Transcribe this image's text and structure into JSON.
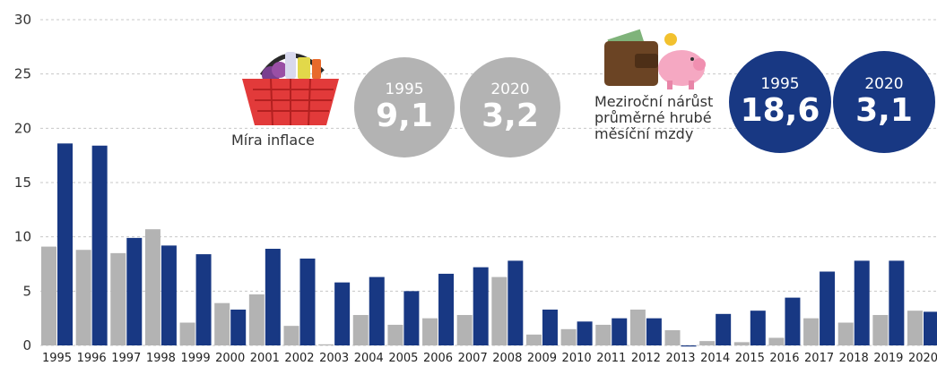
{
  "colors": {
    "inflation": "#b3b3b3",
    "wage_growth": "#183883",
    "circle_grey": "#b3b3b3",
    "circle_blue": "#183883"
  },
  "legend": {
    "inflation": {
      "caption": "Míra inflace",
      "icon": "shopping-basket-icon",
      "start": {
        "year": "1995",
        "value": "9,1"
      },
      "end": {
        "year": "2020",
        "value": "3,2"
      }
    },
    "wages": {
      "caption_lines": [
        "Meziroční nárůst",
        "průměrné hrubé",
        "měsíční mzdy"
      ],
      "icon": "wallet-piggy-bank-icon",
      "start": {
        "year": "1995",
        "value": "18,6"
      },
      "end": {
        "year": "2020",
        "value": "3,1"
      }
    }
  },
  "chart_data": {
    "type": "bar",
    "categories": [
      "1995",
      "1996",
      "1997",
      "1998",
      "1999",
      "2000",
      "2001",
      "2002",
      "2003",
      "2004",
      "2005",
      "2006",
      "2007",
      "2008",
      "2009",
      "2010",
      "2011",
      "2012",
      "2013",
      "2014",
      "2015",
      "2016",
      "2017",
      "2018",
      "2019",
      "2020"
    ],
    "series": [
      {
        "name": "Míra inflace",
        "values": [
          9.1,
          8.8,
          8.5,
          10.7,
          2.1,
          3.9,
          4.7,
          1.8,
          0.1,
          2.8,
          1.9,
          2.5,
          2.8,
          6.3,
          1.0,
          1.5,
          1.9,
          3.3,
          1.4,
          0.4,
          0.3,
          0.7,
          2.5,
          2.1,
          2.8,
          3.2
        ]
      },
      {
        "name": "Meziroční nárůst průměrné hrubé měsíční mzdy",
        "values": [
          18.6,
          18.4,
          9.9,
          9.2,
          8.4,
          3.3,
          8.9,
          8.0,
          5.8,
          6.3,
          5.0,
          6.6,
          7.2,
          7.8,
          3.3,
          2.2,
          2.5,
          2.5,
          -0.1,
          2.9,
          3.2,
          4.4,
          6.8,
          7.8,
          7.8,
          3.1
        ]
      }
    ],
    "y_ticks": [
      0,
      5,
      10,
      15,
      20,
      25,
      30
    ],
    "ylim": [
      0,
      30
    ],
    "grid": true,
    "xlabel": "",
    "ylabel": ""
  }
}
